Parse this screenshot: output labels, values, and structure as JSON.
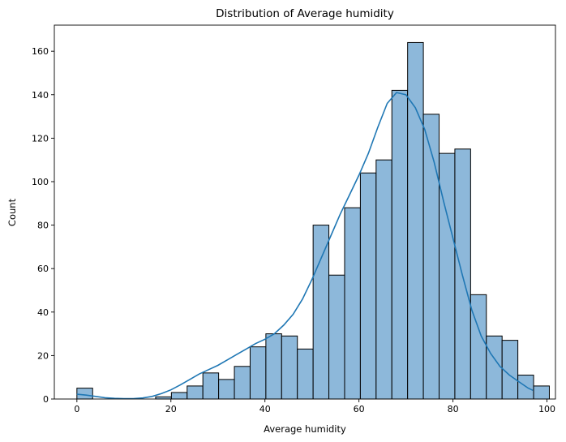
{
  "chart_data": {
    "type": "bar",
    "title": "Distribution of Average humidity",
    "xlabel": "Average humidity",
    "ylabel": "Count",
    "xlim": [
      -4.8,
      101.8
    ],
    "ylim": [
      0,
      172
    ],
    "xticks": [
      0,
      20,
      40,
      60,
      80,
      100
    ],
    "yticks": [
      0,
      20,
      40,
      60,
      80,
      100,
      120,
      140,
      160
    ],
    "grid": false,
    "bin_start": 0,
    "bin_width": 3.35,
    "values": [
      5,
      0,
      0,
      0,
      0,
      1,
      3,
      6,
      12,
      9,
      15,
      24,
      30,
      29,
      23,
      80,
      57,
      88,
      104,
      110,
      142,
      164,
      131,
      113,
      115,
      48,
      29,
      27,
      11,
      6
    ],
    "kde": {
      "x": [
        0,
        2,
        4,
        6,
        8,
        10,
        12,
        14,
        16,
        18,
        20,
        22,
        24,
        26,
        28,
        30,
        32,
        34,
        36,
        38,
        40,
        42,
        44,
        46,
        48,
        50,
        52,
        54,
        56,
        58,
        60,
        62,
        64,
        66,
        68,
        70,
        72,
        74,
        76,
        78,
        80,
        82,
        84,
        86,
        88,
        90,
        92,
        94,
        96,
        97
      ],
      "y": [
        2.2,
        1.8,
        1.2,
        0.6,
        0.3,
        0.2,
        0.2,
        0.5,
        1.2,
        2.5,
        4.2,
        6.5,
        9,
        11.5,
        13.5,
        15.5,
        18,
        20.5,
        23,
        25.5,
        27.5,
        30,
        34,
        39,
        46,
        55,
        65,
        75,
        85,
        94,
        103,
        113,
        125,
        136,
        141,
        140,
        134,
        124,
        109,
        91,
        74,
        57,
        41,
        29,
        21,
        15,
        11,
        8,
        5,
        4
      ]
    }
  }
}
